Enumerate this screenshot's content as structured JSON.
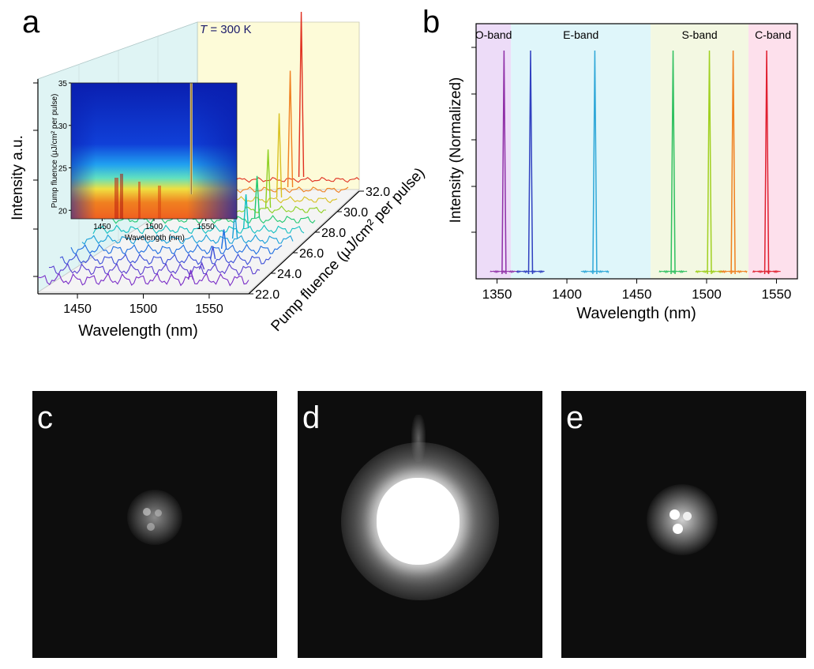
{
  "panels": {
    "a": "a",
    "b": "b",
    "c": "c",
    "d": "d",
    "e": "e"
  },
  "chart_data": [
    {
      "type": "line",
      "panel": "a",
      "title_prefix": "T",
      "title_suffix": " = 300 K",
      "xlabel": "Wavelength (nm)",
      "ylabel": "Intensity a.u.",
      "zlabel": "Pump fluence (μJ/cm² per pulse)",
      "x_ticks": [
        "1450",
        "1500",
        "1550"
      ],
      "xlim": [
        1420,
        1580
      ],
      "z_ticks": [
        "22.0",
        "24.0",
        "26.0",
        "28.0",
        "30.0",
        "32.0"
      ],
      "series": [
        {
          "fluence": 22.0,
          "peak_x": 1536,
          "peak_height": 0.04,
          "color": "#7b2fc8"
        },
        {
          "fluence": 23.0,
          "peak_x": 1536,
          "peak_height": 0.02,
          "color": "#5a3fd0"
        },
        {
          "fluence": 24.0,
          "peak_x": 1536,
          "peak_height": 0.06,
          "color": "#3c4fd8"
        },
        {
          "fluence": 25.0,
          "peak_x": 1536,
          "peak_height": 0.1,
          "color": "#1f6fe0"
        },
        {
          "fluence": 26.0,
          "peak_x": 1536,
          "peak_height": 0.15,
          "color": "#1aa0d8"
        },
        {
          "fluence": 27.0,
          "peak_x": 1536,
          "peak_height": 0.19,
          "color": "#12c0c0"
        },
        {
          "fluence": 28.0,
          "peak_x": 1536,
          "peak_height": 0.24,
          "color": "#20c870"
        },
        {
          "fluence": 29.0,
          "peak_x": 1536,
          "peak_height": 0.34,
          "color": "#8ed020"
        },
        {
          "fluence": 30.0,
          "peak_x": 1536,
          "peak_height": 0.5,
          "color": "#d8c020"
        },
        {
          "fluence": 31.0,
          "peak_x": 1536,
          "peak_height": 0.7,
          "color": "#f08020"
        },
        {
          "fluence": 32.0,
          "peak_x": 1536,
          "peak_height": 1.0,
          "color": "#e03020"
        }
      ],
      "inset": {
        "type": "heatmap",
        "xlabel": "Wavelength (nm)",
        "ylabel": "Pump fluence (μJ/cm² per pulse)",
        "x_ticks": [
          "1450",
          "1500",
          "1550"
        ],
        "y_ticks": [
          "20",
          "25",
          "30",
          "35"
        ],
        "xlim": [
          1420,
          1580
        ],
        "ylim": [
          19,
          35
        ],
        "lasing_line_x": 1536
      }
    },
    {
      "type": "line",
      "panel": "b",
      "xlabel": "Wavelength (nm)",
      "ylabel": "Intensity (Normalized)",
      "x_ticks": [
        "1350",
        "1400",
        "1450",
        "1500",
        "1550"
      ],
      "xlim": [
        1335,
        1565
      ],
      "bands": [
        {
          "name": "O-band",
          "from": 1335,
          "to": 1360,
          "color": "#eddcf8"
        },
        {
          "name": "E-band",
          "from": 1360,
          "to": 1460,
          "color": "#dff6fa"
        },
        {
          "name": "S-band",
          "from": 1460,
          "to": 1530,
          "color": "#f3f8e2"
        },
        {
          "name": "C-band",
          "from": 1530,
          "to": 1565,
          "color": "#fde0ec"
        }
      ],
      "peaks": [
        {
          "x": 1355,
          "height": 1.0,
          "color": "#9030a8"
        },
        {
          "x": 1374,
          "height": 1.0,
          "color": "#3040c0"
        },
        {
          "x": 1420,
          "height": 1.0,
          "color": "#30a8d8"
        },
        {
          "x": 1476,
          "height": 1.0,
          "color": "#30c060"
        },
        {
          "x": 1502,
          "height": 1.0,
          "color": "#a0d020"
        },
        {
          "x": 1519,
          "height": 1.0,
          "color": "#f08020"
        },
        {
          "x": 1543,
          "height": 1.0,
          "color": "#e02030"
        }
      ]
    }
  ],
  "images": {
    "c": {
      "pattern": "weak multi-lobe spot",
      "intensity": 0.35,
      "lobes": 4
    },
    "d": {
      "pattern": "saturated spot with fringes",
      "intensity": 1.0,
      "lobes": 0
    },
    "e": {
      "pattern": "bright three-lobe spot",
      "intensity": 0.8,
      "lobes": 3
    }
  }
}
